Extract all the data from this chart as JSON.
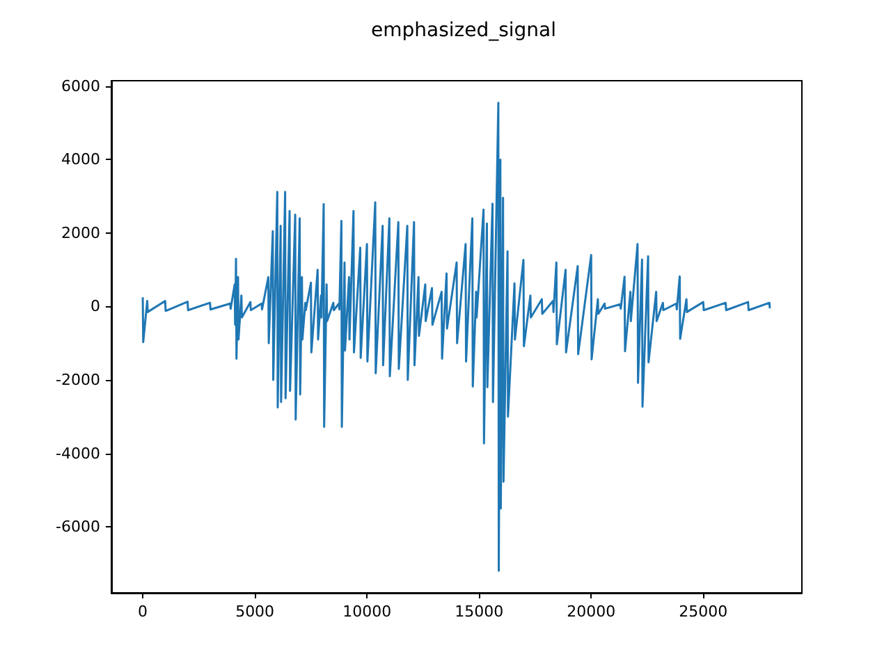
{
  "chart_data": {
    "type": "line",
    "title": "emphasized_signal",
    "x": [
      0,
      20,
      200,
      220,
      1000,
      1020,
      2000,
      2020,
      3000,
      3020,
      3900,
      3920,
      4100,
      4120,
      4160,
      4180,
      4250,
      4270,
      4400,
      4420,
      4800,
      4820,
      5300,
      5320,
      5600,
      5620,
      5800,
      5820,
      6000,
      6020,
      6150,
      6170,
      6350,
      6370,
      6550,
      6570,
      6800,
      6820,
      7000,
      7020,
      7100,
      7120,
      7250,
      7270,
      7500,
      7520,
      7800,
      7820,
      7950,
      7970,
      8070,
      8090,
      8200,
      8220,
      8500,
      8520,
      8750,
      8770,
      8860,
      8880,
      9000,
      9020,
      9200,
      9220,
      9400,
      9420,
      9700,
      9720,
      10000,
      10020,
      10370,
      10390,
      10700,
      10720,
      11000,
      11020,
      11400,
      11420,
      11800,
      11820,
      12100,
      12120,
      12300,
      12320,
      12600,
      12620,
      12900,
      12920,
      13330,
      13350,
      13550,
      13570,
      14000,
      14020,
      14400,
      14420,
      14700,
      14720,
      14870,
      14890,
      15200,
      15220,
      15350,
      15370,
      15600,
      15620,
      15860,
      15880,
      15950,
      15970,
      16070,
      16090,
      16270,
      16290,
      16580,
      16600,
      16980,
      17000,
      17290,
      17310,
      17800,
      17820,
      18300,
      18320,
      18450,
      18470,
      18860,
      18880,
      19400,
      19420,
      20000,
      20020,
      20300,
      20320,
      20600,
      20620,
      21300,
      21320,
      21490,
      21510,
      21750,
      21770,
      22070,
      22090,
      22270,
      22290,
      22540,
      22560,
      22900,
      22920,
      23200,
      23220,
      23800,
      23820,
      23950,
      23970,
      24250,
      24270,
      25000,
      25020,
      26000,
      26020,
      27000,
      27020,
      27950,
      27970
    ],
    "series": [
      {
        "color": "#1f77b4",
        "values": [
          250,
          -970,
          150,
          -150,
          150,
          -120,
          130,
          -100,
          100,
          -80,
          80,
          -60,
          600,
          -500,
          1300,
          -1420,
          800,
          -900,
          300,
          -300,
          120,
          -100,
          80,
          -80,
          800,
          -1000,
          2050,
          -2000,
          3120,
          -2750,
          2200,
          -2600,
          3120,
          -2500,
          2600,
          -2300,
          2500,
          -3080,
          2400,
          -2400,
          800,
          -900,
          100,
          -100,
          650,
          -1250,
          1000,
          -900,
          300,
          -300,
          2790,
          -3280,
          600,
          -400,
          100,
          -100,
          80,
          -80,
          2330,
          -3280,
          1200,
          -1200,
          800,
          -900,
          2600,
          -1250,
          1600,
          -1400,
          1700,
          -1500,
          2840,
          -1820,
          2200,
          -1600,
          2400,
          -1900,
          2300,
          -1700,
          2200,
          -2000,
          2300,
          -1600,
          800,
          -800,
          600,
          -400,
          500,
          -500,
          400,
          -1420,
          900,
          -600,
          1200,
          -1000,
          1700,
          -1500,
          2400,
          -2180,
          400,
          -300,
          2640,
          -3730,
          2260,
          -2200,
          2800,
          -2600,
          5550,
          -7200,
          4000,
          -5500,
          2960,
          -4770,
          1500,
          -3000,
          630,
          -900,
          1270,
          -1080,
          300,
          -300,
          200,
          -200,
          150,
          -150,
          1200,
          -1030,
          1000,
          -1250,
          1100,
          -1300,
          1400,
          -1440,
          200,
          -200,
          80,
          -60,
          60,
          -60,
          810,
          -1220,
          400,
          -400,
          1700,
          -2080,
          1280,
          -2730,
          1370,
          -1520,
          400,
          -400,
          100,
          -100,
          80,
          -80,
          820,
          -880,
          200,
          -150,
          120,
          -100,
          100,
          -100,
          120,
          -100,
          100,
          -50
        ]
      }
    ],
    "xlim": [
      -1400,
      29400
    ],
    "xticks": [
      0,
      5000,
      10000,
      15000,
      20000,
      25000
    ],
    "ylim": [
      -7800,
      6150
    ],
    "yticks": [
      -6000,
      -4000,
      -2000,
      0,
      2000,
      4000,
      6000
    ],
    "grid": false,
    "marker": "none",
    "line_style": "solid"
  }
}
